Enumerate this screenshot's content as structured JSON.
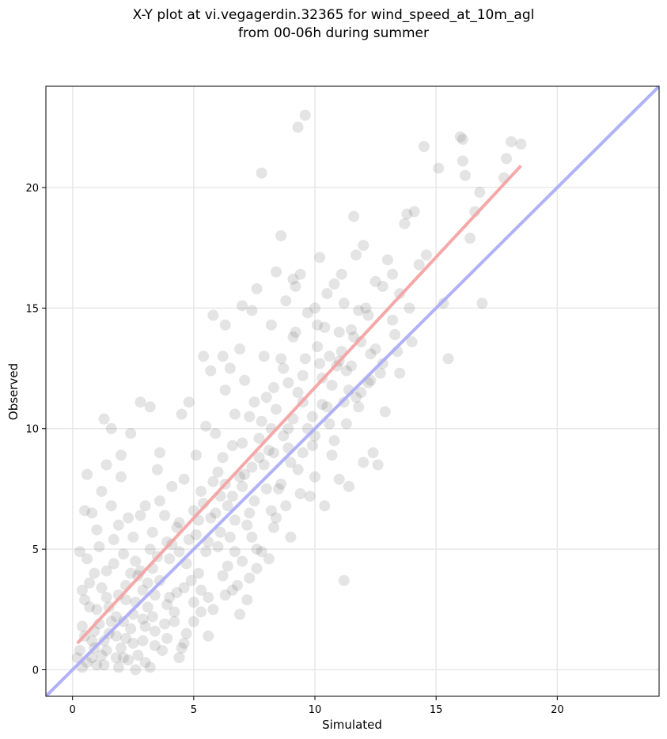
{
  "title_line1": "X-Y plot at vi.vegagerdin.32365 for wind_speed_at_10m_agl",
  "title_line2": "from 00-06h during summer",
  "chart_data": {
    "type": "scatter",
    "title": "X-Y plot at vi.vegagerdin.32365 for wind_speed_at_10m_agl from 00-06h during summer",
    "xlabel": "Simulated",
    "ylabel": "Observed",
    "xlim": [
      -1.1,
      24.2
    ],
    "ylim": [
      -1.1,
      24.2
    ],
    "xticks": [
      0,
      5,
      10,
      15,
      20
    ],
    "yticks": [
      0,
      5,
      10,
      15,
      20
    ],
    "grid": true,
    "colors": {
      "points": "#555555",
      "fit_line": "#f4a3a3",
      "identity_line": "#a9a9f6"
    },
    "fit_line": {
      "x": [
        0.2,
        18.5
      ],
      "y": [
        1.1,
        20.9
      ]
    },
    "identity_line": {
      "x": [
        -1.1,
        24.2
      ],
      "y": [
        -1.1,
        24.2
      ]
    },
    "points": [
      [
        0.6,
        0.3
      ],
      [
        0.8,
        1.2
      ],
      [
        1.0,
        2.5
      ],
      [
        1.2,
        0.6
      ],
      [
        1.4,
        3.0
      ],
      [
        0.4,
        1.8
      ],
      [
        0.9,
        4.0
      ],
      [
        1.5,
        1.5
      ],
      [
        1.8,
        2.2
      ],
      [
        2.0,
        0.9
      ],
      [
        2.2,
        3.5
      ],
      [
        0.5,
        2.9
      ],
      [
        1.1,
        5.1
      ],
      [
        1.3,
        0.2
      ],
      [
        1.7,
        4.4
      ],
      [
        2.4,
        1.7
      ],
      [
        2.6,
        2.8
      ],
      [
        0.7,
        3.6
      ],
      [
        1.9,
        6.0
      ],
      [
        2.1,
        4.8
      ],
      [
        2.3,
        0.4
      ],
      [
        2.5,
        5.5
      ],
      [
        2.7,
        3.9
      ],
      [
        2.9,
        1.2
      ],
      [
        3.1,
        2.6
      ],
      [
        3.3,
        4.2
      ],
      [
        0.3,
        0.8
      ],
      [
        1.6,
        6.8
      ],
      [
        2.8,
        6.4
      ],
      [
        3.0,
        0.3
      ],
      [
        3.2,
        5.0
      ],
      [
        3.4,
        3.1
      ],
      [
        3.6,
        7.0
      ],
      [
        3.8,
        1.9
      ],
      [
        4.0,
        4.6
      ],
      [
        4.2,
        2.4
      ],
      [
        4.4,
        6.1
      ],
      [
        4.6,
        3.4
      ],
      [
        4.8,
        5.4
      ],
      [
        5.0,
        2.0
      ],
      [
        1.2,
        7.4
      ],
      [
        0.8,
        6.5
      ],
      [
        2.0,
        8.0
      ],
      [
        3.5,
        8.3
      ],
      [
        4.1,
        7.6
      ],
      [
        4.5,
        0.9
      ],
      [
        5.2,
        4.0
      ],
      [
        5.4,
        6.9
      ],
      [
        5.6,
        3.0
      ],
      [
        5.8,
        7.8
      ],
      [
        6.0,
        5.1
      ],
      [
        6.2,
        8.8
      ],
      [
        6.4,
        4.3
      ],
      [
        6.6,
        7.2
      ],
      [
        6.8,
        3.5
      ],
      [
        7.0,
        9.4
      ],
      [
        7.2,
        6.0
      ],
      [
        7.4,
        8.4
      ],
      [
        7.6,
        5.0
      ],
      [
        7.8,
        10.3
      ],
      [
        5.1,
        8.9
      ],
      [
        5.5,
        10.1
      ],
      [
        5.9,
        9.8
      ],
      [
        6.3,
        11.6
      ],
      [
        6.7,
        10.6
      ],
      [
        7.1,
        12.0
      ],
      [
        7.5,
        11.1
      ],
      [
        7.9,
        13.0
      ],
      [
        8.1,
        9.1
      ],
      [
        8.3,
        11.7
      ],
      [
        8.5,
        7.5
      ],
      [
        8.7,
        12.5
      ],
      [
        8.9,
        10.0
      ],
      [
        9.1,
        13.8
      ],
      [
        9.3,
        8.3
      ],
      [
        9.5,
        12.2
      ],
      [
        9.7,
        14.8
      ],
      [
        9.9,
        9.3
      ],
      [
        10.1,
        13.4
      ],
      [
        10.3,
        11.0
      ],
      [
        10.5,
        15.6
      ],
      [
        10.7,
        8.9
      ],
      [
        10.9,
        12.6
      ],
      [
        11.1,
        16.4
      ],
      [
        11.3,
        10.2
      ],
      [
        11.5,
        14.1
      ],
      [
        11.7,
        17.2
      ],
      [
        11.9,
        11.5
      ],
      [
        12.1,
        15.0
      ],
      [
        12.3,
        13.1
      ],
      [
        12.5,
        16.1
      ],
      [
        12.7,
        12.3
      ],
      [
        13.0,
        17.0
      ],
      [
        13.2,
        14.5
      ],
      [
        13.5,
        15.6
      ],
      [
        13.7,
        18.5
      ],
      [
        14.0,
        13.6
      ],
      [
        14.3,
        16.8
      ],
      [
        14.5,
        21.7
      ],
      [
        15.1,
        20.8
      ],
      [
        15.3,
        15.2
      ],
      [
        15.5,
        12.9
      ],
      [
        16.0,
        22.1
      ],
      [
        16.1,
        21.1
      ],
      [
        16.2,
        20.5
      ],
      [
        16.4,
        17.9
      ],
      [
        16.6,
        19.0
      ],
      [
        16.8,
        19.8
      ],
      [
        16.9,
        15.2
      ],
      [
        17.8,
        20.4
      ],
      [
        18.1,
        21.9
      ],
      [
        18.5,
        21.8
      ],
      [
        9.3,
        22.5
      ],
      [
        9.6,
        23.0
      ],
      [
        7.8,
        20.6
      ],
      [
        8.6,
        18.0
      ],
      [
        11.6,
        18.8
      ],
      [
        10.2,
        17.1
      ],
      [
        12.0,
        17.6
      ],
      [
        11.2,
        3.7
      ],
      [
        1.3,
        10.4
      ],
      [
        1.6,
        10.0
      ],
      [
        2.4,
        9.8
      ],
      [
        2.8,
        11.1
      ],
      [
        3.2,
        10.9
      ],
      [
        4.5,
        10.6
      ],
      [
        4.8,
        11.1
      ],
      [
        3.6,
        9.0
      ],
      [
        2.0,
        8.9
      ],
      [
        0.6,
        8.1
      ],
      [
        1.4,
        8.5
      ],
      [
        0.5,
        6.6
      ],
      [
        5.6,
        1.4
      ],
      [
        4.4,
        0.5
      ],
      [
        3.2,
        0.1
      ],
      [
        2.6,
        0.0
      ],
      [
        1.9,
        0.1
      ],
      [
        6.3,
        3.1
      ],
      [
        7.2,
        2.9
      ],
      [
        6.9,
        2.3
      ],
      [
        8.1,
        4.6
      ],
      [
        9.0,
        5.5
      ],
      [
        8.4,
        6.3
      ],
      [
        9.8,
        7.2
      ],
      [
        10.4,
        6.8
      ],
      [
        11.0,
        7.9
      ],
      [
        11.4,
        7.6
      ],
      [
        12.0,
        8.6
      ],
      [
        12.6,
        8.5
      ],
      [
        12.4,
        9.0
      ],
      [
        13.4,
        13.2
      ],
      [
        13.5,
        12.3
      ],
      [
        12.9,
        10.7
      ],
      [
        12.2,
        11.9
      ],
      [
        11.8,
        10.9
      ],
      [
        10.8,
        9.5
      ],
      [
        10.0,
        8.0
      ],
      [
        9.4,
        7.3
      ],
      [
        8.8,
        6.8
      ],
      [
        8.3,
        5.9
      ],
      [
        7.6,
        4.2
      ],
      [
        7.3,
        3.8
      ],
      [
        6.7,
        4.9
      ],
      [
        6.1,
        5.7
      ],
      [
        5.3,
        2.4
      ],
      [
        4.7,
        1.5
      ],
      [
        4.3,
        3.2
      ],
      [
        3.9,
        2.7
      ],
      [
        3.7,
        0.8
      ],
      [
        3.4,
        1.6
      ],
      [
        2.9,
        2.1
      ],
      [
        2.7,
        0.6
      ],
      [
        2.2,
        1.3
      ],
      [
        1.8,
        0.5
      ],
      [
        1.1,
        1.9
      ],
      [
        0.9,
        0.9
      ],
      [
        0.7,
        2.6
      ],
      [
        0.4,
        3.3
      ],
      [
        0.3,
        4.9
      ],
      [
        0.6,
        4.6
      ],
      [
        1.0,
        5.8
      ],
      [
        1.4,
        4.1
      ],
      [
        1.7,
        5.4
      ],
      [
        2.3,
        6.3
      ],
      [
        2.6,
        4.5
      ],
      [
        3.0,
        6.8
      ],
      [
        3.3,
        5.7
      ],
      [
        3.8,
        6.4
      ],
      [
        4.1,
        5.2
      ],
      [
        4.6,
        7.9
      ],
      [
        5.0,
        6.6
      ],
      [
        5.3,
        7.4
      ],
      [
        5.7,
        6.3
      ],
      [
        6.0,
        8.2
      ],
      [
        6.4,
        6.8
      ],
      [
        6.6,
        9.3
      ],
      [
        7.0,
        7.6
      ],
      [
        7.3,
        10.5
      ],
      [
        7.7,
        8.8
      ],
      [
        8.0,
        11.3
      ],
      [
        8.2,
        10.0
      ],
      [
        8.6,
        12.9
      ],
      [
        8.9,
        11.9
      ],
      [
        9.2,
        14.0
      ],
      [
        9.6,
        12.9
      ],
      [
        10.0,
        15.0
      ],
      [
        10.4,
        14.2
      ],
      [
        10.8,
        16.0
      ],
      [
        11.2,
        15.2
      ],
      [
        11.6,
        13.8
      ],
      [
        12.2,
        14.7
      ],
      [
        12.8,
        15.9
      ],
      [
        13.2,
        16.4
      ],
      [
        13.8,
        18.9
      ],
      [
        14.1,
        19.0
      ],
      [
        14.6,
        17.2
      ],
      [
        16.1,
        22.0
      ],
      [
        17.9,
        21.2
      ],
      [
        8.2,
        14.3
      ],
      [
        8.8,
        15.3
      ],
      [
        9.1,
        16.2
      ],
      [
        7.4,
        14.9
      ],
      [
        6.9,
        13.3
      ],
      [
        6.5,
        12.5
      ],
      [
        6.2,
        13.0
      ],
      [
        5.7,
        12.4
      ],
      [
        5.4,
        13.0
      ],
      [
        5.8,
        14.7
      ],
      [
        6.3,
        14.3
      ],
      [
        7.0,
        15.1
      ],
      [
        7.6,
        15.8
      ],
      [
        8.4,
        16.5
      ],
      [
        9.2,
        15.9
      ],
      [
        9.4,
        16.4
      ],
      [
        10.1,
        14.3
      ],
      [
        10.6,
        13.0
      ],
      [
        11.0,
        12.8
      ],
      [
        11.3,
        12.4
      ],
      [
        11.9,
        13.6
      ],
      [
        12.5,
        13.3
      ],
      [
        0.5,
        1.4
      ],
      [
        0.8,
        0.5
      ],
      [
        1.3,
        1.2
      ],
      [
        1.5,
        2.6
      ],
      [
        1.9,
        3.1
      ],
      [
        2.1,
        2.0
      ],
      [
        2.5,
        2.3
      ],
      [
        2.8,
        4.1
      ],
      [
        3.1,
        3.6
      ],
      [
        3.5,
        4.7
      ],
      [
        3.9,
        5.3
      ],
      [
        4.3,
        5.9
      ],
      [
        4.7,
        4.4
      ],
      [
        5.1,
        5.6
      ],
      [
        5.5,
        4.9
      ],
      [
        5.9,
        6.5
      ],
      [
        6.3,
        7.7
      ],
      [
        6.7,
        6.2
      ],
      [
        7.1,
        8.1
      ],
      [
        7.5,
        7.0
      ],
      [
        7.9,
        8.5
      ],
      [
        8.3,
        9.0
      ],
      [
        8.7,
        9.7
      ],
      [
        9.1,
        10.4
      ],
      [
        9.5,
        11.1
      ],
      [
        9.9,
        10.5
      ],
      [
        10.3,
        12.1
      ],
      [
        10.7,
        11.8
      ],
      [
        11.1,
        13.2
      ],
      [
        11.5,
        12.6
      ],
      [
        0.2,
        0.5
      ],
      [
        0.4,
        0.1
      ],
      [
        0.9,
        1.6
      ],
      [
        1.2,
        3.4
      ],
      [
        1.6,
        2.0
      ],
      [
        2.2,
        2.9
      ],
      [
        2.4,
        4.0
      ],
      [
        2.9,
        3.3
      ],
      [
        3.3,
        2.2
      ],
      [
        3.6,
        3.7
      ],
      [
        4.0,
        3.0
      ],
      [
        4.4,
        4.9
      ],
      [
        4.9,
        3.7
      ],
      [
        5.2,
        6.2
      ],
      [
        5.6,
        5.3
      ],
      [
        6.1,
        7.2
      ],
      [
        6.5,
        5.5
      ],
      [
        6.9,
        8.0
      ],
      [
        7.3,
        6.5
      ],
      [
        7.7,
        9.6
      ],
      [
        8.0,
        7.5
      ],
      [
        8.4,
        10.8
      ],
      [
        8.9,
        9.2
      ],
      [
        9.3,
        11.5
      ],
      [
        9.7,
        10.0
      ],
      [
        10.2,
        12.7
      ],
      [
        10.5,
        10.9
      ],
      [
        11.0,
        14.0
      ],
      [
        11.4,
        11.6
      ],
      [
        11.8,
        14.9
      ],
      [
        1.0,
        0.2
      ],
      [
        1.4,
        0.8
      ],
      [
        1.8,
        1.4
      ],
      [
        2.1,
        0.5
      ],
      [
        2.5,
        1.1
      ],
      [
        3.0,
        1.8
      ],
      [
        3.4,
        1.0
      ],
      [
        3.9,
        1.3
      ],
      [
        4.2,
        2.0
      ],
      [
        4.6,
        1.1
      ],
      [
        5.0,
        2.8
      ],
      [
        5.3,
        3.3
      ],
      [
        5.8,
        2.5
      ],
      [
        6.2,
        3.9
      ],
      [
        6.6,
        3.3
      ],
      [
        7.0,
        4.5
      ],
      [
        7.4,
        5.5
      ],
      [
        7.8,
        4.9
      ],
      [
        8.2,
        6.6
      ],
      [
        8.6,
        7.7
      ],
      [
        9.0,
        8.6
      ],
      [
        9.5,
        9.0
      ],
      [
        10.0,
        9.7
      ],
      [
        10.6,
        10.2
      ],
      [
        11.2,
        11.1
      ],
      [
        11.7,
        11.3
      ],
      [
        12.3,
        12.0
      ],
      [
        12.8,
        12.7
      ],
      [
        13.3,
        13.9
      ],
      [
        13.9,
        15.0
      ]
    ]
  }
}
